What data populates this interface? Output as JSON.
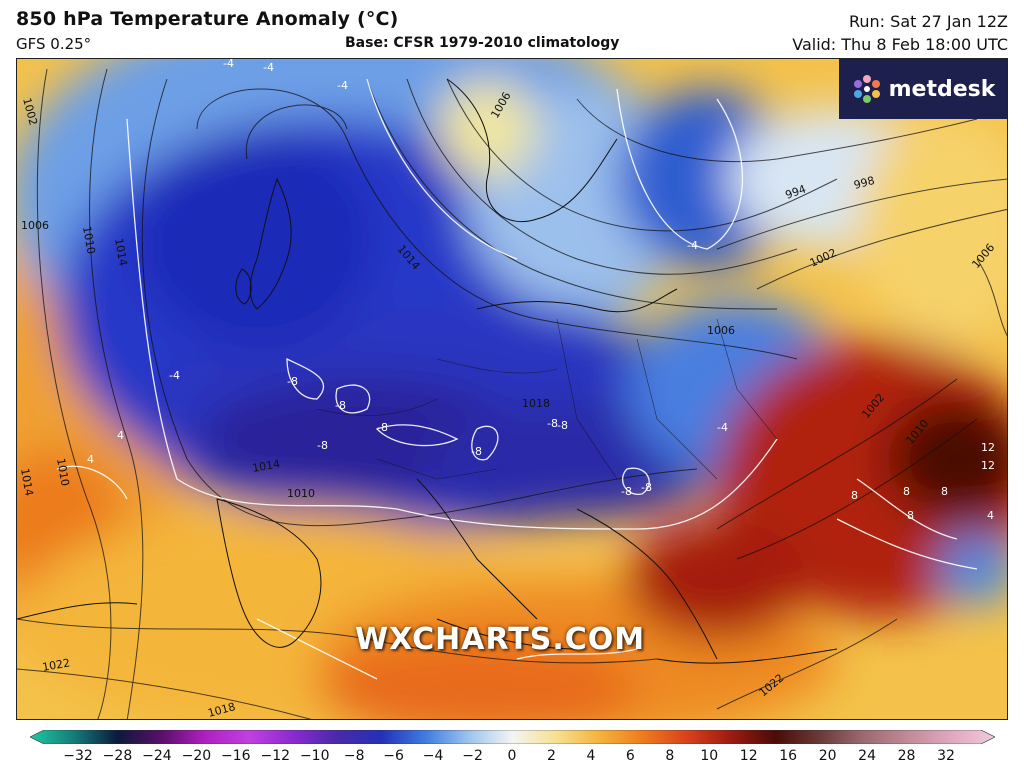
{
  "header": {
    "title": "850 hPa Temperature Anomaly (°C)",
    "model": "GFS 0.25°",
    "base": "Base: CFSR 1979-2010 climatology",
    "run": "Run: Sat 27 Jan 12Z",
    "valid": "Valid: Thu 8 Feb 18:00 UTC"
  },
  "logo": {
    "text": "metdesk",
    "icon": "metdesk-flower-icon"
  },
  "watermark": "WXCHARTS.COM",
  "map": {
    "isobar_labels": [
      "1002",
      "1006",
      "1010",
      "1014",
      "1010",
      "1014",
      "1006",
      "1014",
      "994",
      "998",
      "1002",
      "1006",
      "1006",
      "1018",
      "1014",
      "1010",
      "1002",
      "1010",
      "1022",
      "1018",
      "1022"
    ],
    "anomaly_labels": [
      "-4",
      "-4",
      "-4",
      "-4",
      "-4",
      "-4",
      "-8",
      "-8",
      "-8",
      "-8",
      "-8",
      "-8",
      "-8",
      "-8",
      "-8",
      "4",
      "4",
      "8",
      "8",
      "8",
      "8",
      "12",
      "12",
      "4"
    ],
    "colors": {
      "cold_deep": "#2b1a8c",
      "cold": "#1f3fc8",
      "cool": "#5a8ee0",
      "near_zero": "#e8eef5",
      "warm": "#f7d35a",
      "warmer": "#f08a1c",
      "hot": "#b8240e",
      "very_hot": "#5a0d08"
    }
  },
  "colorbar": {
    "ticks": [
      "−32",
      "−28",
      "−24",
      "−20",
      "−16",
      "−12",
      "−10",
      "−8",
      "−6",
      "−4",
      "−2",
      "0",
      "2",
      "4",
      "6",
      "8",
      "10",
      "12",
      "16",
      "20",
      "24",
      "28",
      "32"
    ],
    "colors": [
      "#1fc9a0",
      "#157c7a",
      "#0b1a3a",
      "#5a0f6a",
      "#b020c0",
      "#c040e0",
      "#8a2ad0",
      "#4a2aa8",
      "#2430b8",
      "#3f7be0",
      "#9dc4ee",
      "#f4f4f4",
      "#f7e090",
      "#f4b23c",
      "#ee7a1e",
      "#d8401c",
      "#9c1a10",
      "#4a0c08",
      "#6a3a38",
      "#9c6a70",
      "#c08a96",
      "#e0a8c0",
      "#f0c8dc"
    ]
  }
}
